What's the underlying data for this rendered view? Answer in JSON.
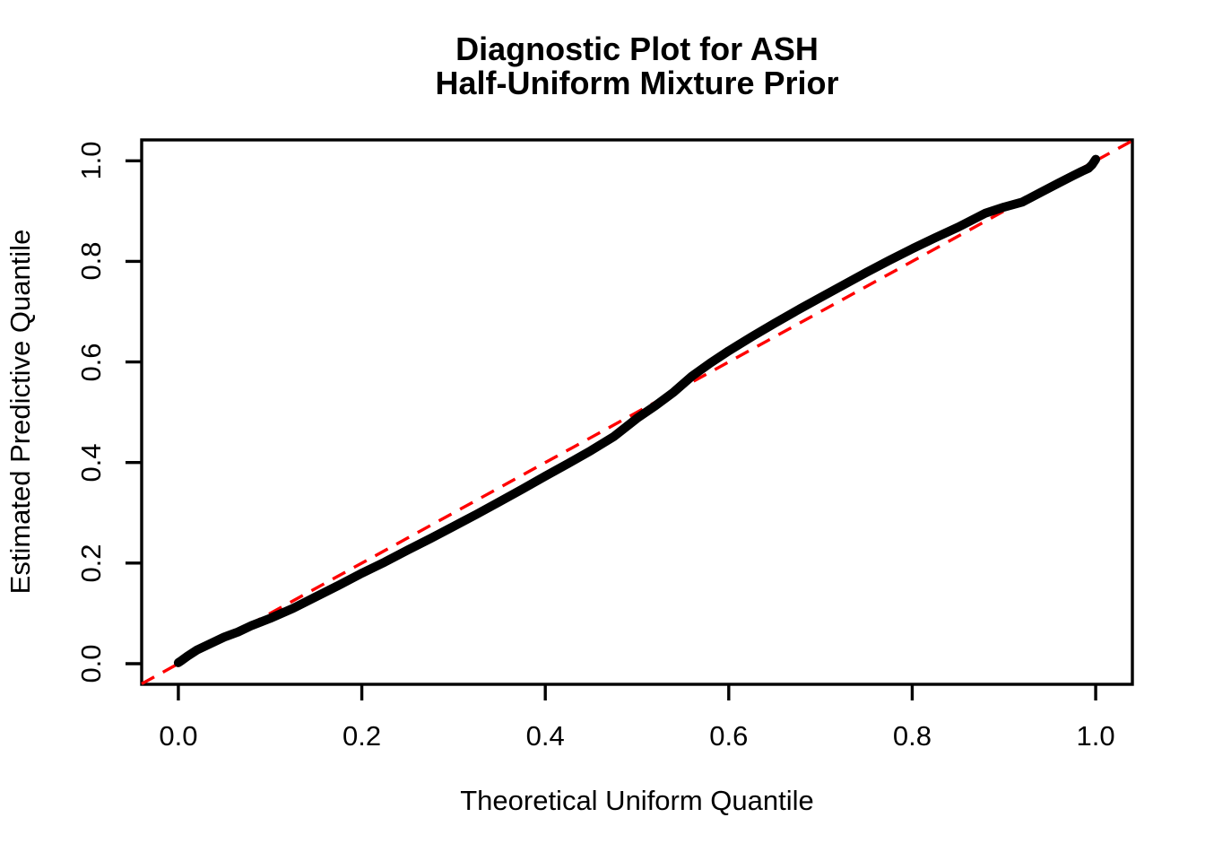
{
  "chart_data": {
    "type": "line",
    "title": "Diagnostic Plot for ASH\nHalf-Uniform Mixture Prior",
    "title_lines": [
      "Diagnostic Plot for ASH",
      "Half-Uniform Mixture Prior"
    ],
    "xlabel": "Theoretical Uniform Quantile",
    "ylabel": "Estimated Predictive Quantile",
    "x_ticks": [
      0.0,
      0.2,
      0.4,
      0.6,
      0.8,
      1.0
    ],
    "x_tick_labels": [
      "0.0",
      "0.2",
      "0.4",
      "0.6",
      "0.8",
      "1.0"
    ],
    "y_ticks": [
      0.0,
      0.2,
      0.4,
      0.6,
      0.8,
      1.0
    ],
    "y_tick_labels": [
      "0.0",
      "0.2",
      "0.4",
      "0.6",
      "0.8",
      "1.0"
    ],
    "xlim": [
      -0.04,
      1.04
    ],
    "ylim": [
      -0.041,
      1.0415
    ],
    "grid": false,
    "legend": null,
    "series": [
      {
        "name": "estimated-vs-theoretical-quantiles",
        "color": "#000000",
        "style": "thick-solid",
        "points": [
          [
            0.0,
            0.002
          ],
          [
            0.004,
            0.007
          ],
          [
            0.01,
            0.015
          ],
          [
            0.02,
            0.027
          ],
          [
            0.035,
            0.04
          ],
          [
            0.05,
            0.053
          ],
          [
            0.065,
            0.063
          ],
          [
            0.08,
            0.076
          ],
          [
            0.1,
            0.09
          ],
          [
            0.125,
            0.11
          ],
          [
            0.15,
            0.133
          ],
          [
            0.175,
            0.156
          ],
          [
            0.2,
            0.18
          ],
          [
            0.225,
            0.202
          ],
          [
            0.25,
            0.226
          ],
          [
            0.275,
            0.249
          ],
          [
            0.3,
            0.273
          ],
          [
            0.325,
            0.297
          ],
          [
            0.35,
            0.322
          ],
          [
            0.375,
            0.347
          ],
          [
            0.4,
            0.373
          ],
          [
            0.425,
            0.398
          ],
          [
            0.45,
            0.424
          ],
          [
            0.475,
            0.452
          ],
          [
            0.5,
            0.488
          ],
          [
            0.52,
            0.513
          ],
          [
            0.54,
            0.54
          ],
          [
            0.56,
            0.572
          ],
          [
            0.58,
            0.598
          ],
          [
            0.6,
            0.622
          ],
          [
            0.625,
            0.65
          ],
          [
            0.65,
            0.677
          ],
          [
            0.675,
            0.703
          ],
          [
            0.7,
            0.728
          ],
          [
            0.725,
            0.753
          ],
          [
            0.75,
            0.778
          ],
          [
            0.775,
            0.802
          ],
          [
            0.8,
            0.825
          ],
          [
            0.825,
            0.847
          ],
          [
            0.85,
            0.868
          ],
          [
            0.88,
            0.896
          ],
          [
            0.9,
            0.908
          ],
          [
            0.92,
            0.918
          ],
          [
            0.94,
            0.937
          ],
          [
            0.96,
            0.956
          ],
          [
            0.975,
            0.97
          ],
          [
            0.985,
            0.979
          ],
          [
            0.992,
            0.985
          ],
          [
            0.996,
            0.992
          ],
          [
            1.0,
            1.003
          ]
        ]
      }
    ],
    "reference_line": {
      "name": "y-equals-x-diagonal",
      "color": "#FF0000",
      "style": "dashed",
      "from": [
        -0.04,
        -0.04
      ],
      "to": [
        1.04,
        1.04
      ]
    }
  },
  "colors": {
    "curve": "#000000",
    "reference": "#FF0000",
    "background": "#FFFFFF",
    "text": "#000000"
  }
}
